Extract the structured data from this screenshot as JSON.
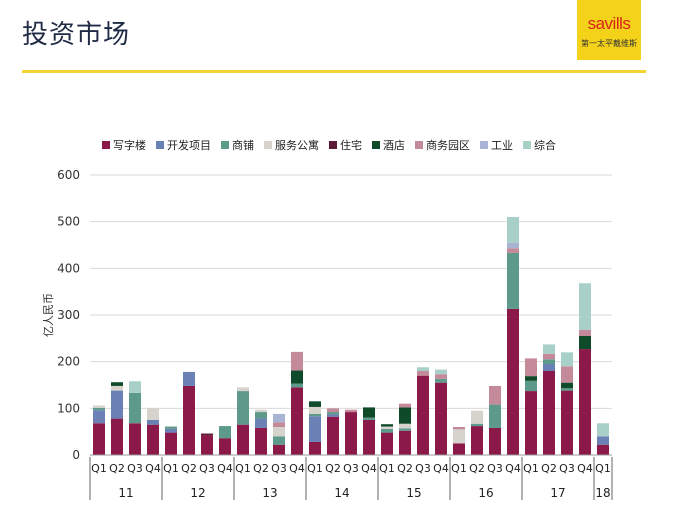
{
  "header": {
    "title": "投资市场",
    "logo_text": "savills",
    "logo_subtext": "第一太平戴维斯",
    "accent_color": "#f4d430"
  },
  "chart_data": {
    "type": "bar",
    "stacked": true,
    "ylabel": "亿人民币",
    "ylim": [
      0,
      600
    ],
    "yticks": [
      0,
      100,
      200,
      300,
      400,
      500,
      600
    ],
    "grid": true,
    "legend_position": "top",
    "x_quarters": [
      "Q1",
      "Q2",
      "Q3",
      "Q4",
      "Q1",
      "Q2",
      "Q3",
      "Q4",
      "Q1",
      "Q2",
      "Q3",
      "Q4",
      "Q1",
      "Q2",
      "Q3",
      "Q4",
      "Q1",
      "Q2",
      "Q3",
      "Q4",
      "Q1",
      "Q2",
      "Q3",
      "Q4",
      "Q1",
      "Q2",
      "Q3",
      "Q4",
      "Q1"
    ],
    "year_groups": [
      {
        "label": "11",
        "count": 4
      },
      {
        "label": "12",
        "count": 4
      },
      {
        "label": "13",
        "count": 4
      },
      {
        "label": "14",
        "count": 4
      },
      {
        "label": "15",
        "count": 4
      },
      {
        "label": "16",
        "count": 4
      },
      {
        "label": "17",
        "count": 4
      },
      {
        "label": "18",
        "count": 1
      }
    ],
    "series": [
      {
        "name": "写字楼",
        "color": "#8b1a4a",
        "values": [
          68,
          78,
          68,
          65,
          48,
          148,
          42,
          36,
          65,
          58,
          22,
          145,
          28,
          82,
          92,
          75,
          48,
          52,
          170,
          155,
          25,
          62,
          58,
          313,
          137,
          180,
          138,
          227,
          22
        ]
      },
      {
        "name": "开发项目",
        "color": "#6b80b5",
        "values": [
          28,
          60,
          0,
          10,
          8,
          30,
          0,
          0,
          0,
          20,
          0,
          0,
          55,
          5,
          0,
          0,
          0,
          0,
          0,
          0,
          0,
          0,
          0,
          0,
          0,
          15,
          0,
          0,
          18
        ]
      },
      {
        "name": "商铺",
        "color": "#5e9a8c",
        "values": [
          5,
          0,
          65,
          0,
          5,
          0,
          0,
          26,
          72,
          14,
          18,
          8,
          5,
          5,
          0,
          5,
          8,
          5,
          0,
          8,
          0,
          5,
          50,
          120,
          22,
          10,
          5,
          0,
          0
        ]
      },
      {
        "name": "服务公寓",
        "color": "#d6d2cc",
        "values": [
          5,
          10,
          0,
          26,
          0,
          0,
          0,
          0,
          8,
          5,
          20,
          0,
          15,
          0,
          0,
          0,
          5,
          10,
          0,
          0,
          30,
          28,
          0,
          0,
          0,
          0,
          0,
          0,
          0
        ]
      },
      {
        "name": "住宅",
        "color": "#5c1a36",
        "values": [
          0,
          0,
          0,
          0,
          0,
          0,
          4,
          0,
          0,
          0,
          0,
          0,
          0,
          0,
          0,
          0,
          0,
          0,
          0,
          0,
          0,
          0,
          0,
          0,
          0,
          0,
          0,
          0,
          0
        ]
      },
      {
        "name": "酒店",
        "color": "#0f4a2a",
        "values": [
          0,
          8,
          0,
          0,
          0,
          0,
          0,
          0,
          0,
          0,
          0,
          28,
          12,
          0,
          0,
          22,
          5,
          35,
          0,
          0,
          0,
          0,
          0,
          0,
          10,
          0,
          12,
          28,
          0
        ]
      },
      {
        "name": "商务园区",
        "color": "#c48a9a",
        "values": [
          0,
          0,
          0,
          0,
          0,
          0,
          0,
          0,
          0,
          0,
          10,
          40,
          0,
          8,
          5,
          0,
          0,
          8,
          10,
          10,
          5,
          0,
          40,
          10,
          38,
          12,
          35,
          13,
          0
        ]
      },
      {
        "name": "工业",
        "color": "#a9b4d4",
        "values": [
          0,
          0,
          0,
          0,
          0,
          0,
          0,
          0,
          0,
          0,
          18,
          0,
          0,
          0,
          0,
          0,
          0,
          0,
          0,
          0,
          0,
          0,
          0,
          12,
          0,
          0,
          0,
          0,
          0
        ]
      },
      {
        "name": "综合",
        "color": "#a9d0c8",
        "values": [
          0,
          0,
          25,
          0,
          0,
          0,
          0,
          0,
          0,
          0,
          0,
          0,
          0,
          0,
          0,
          0,
          0,
          0,
          8,
          10,
          0,
          0,
          0,
          55,
          0,
          20,
          30,
          100,
          28
        ]
      }
    ]
  }
}
